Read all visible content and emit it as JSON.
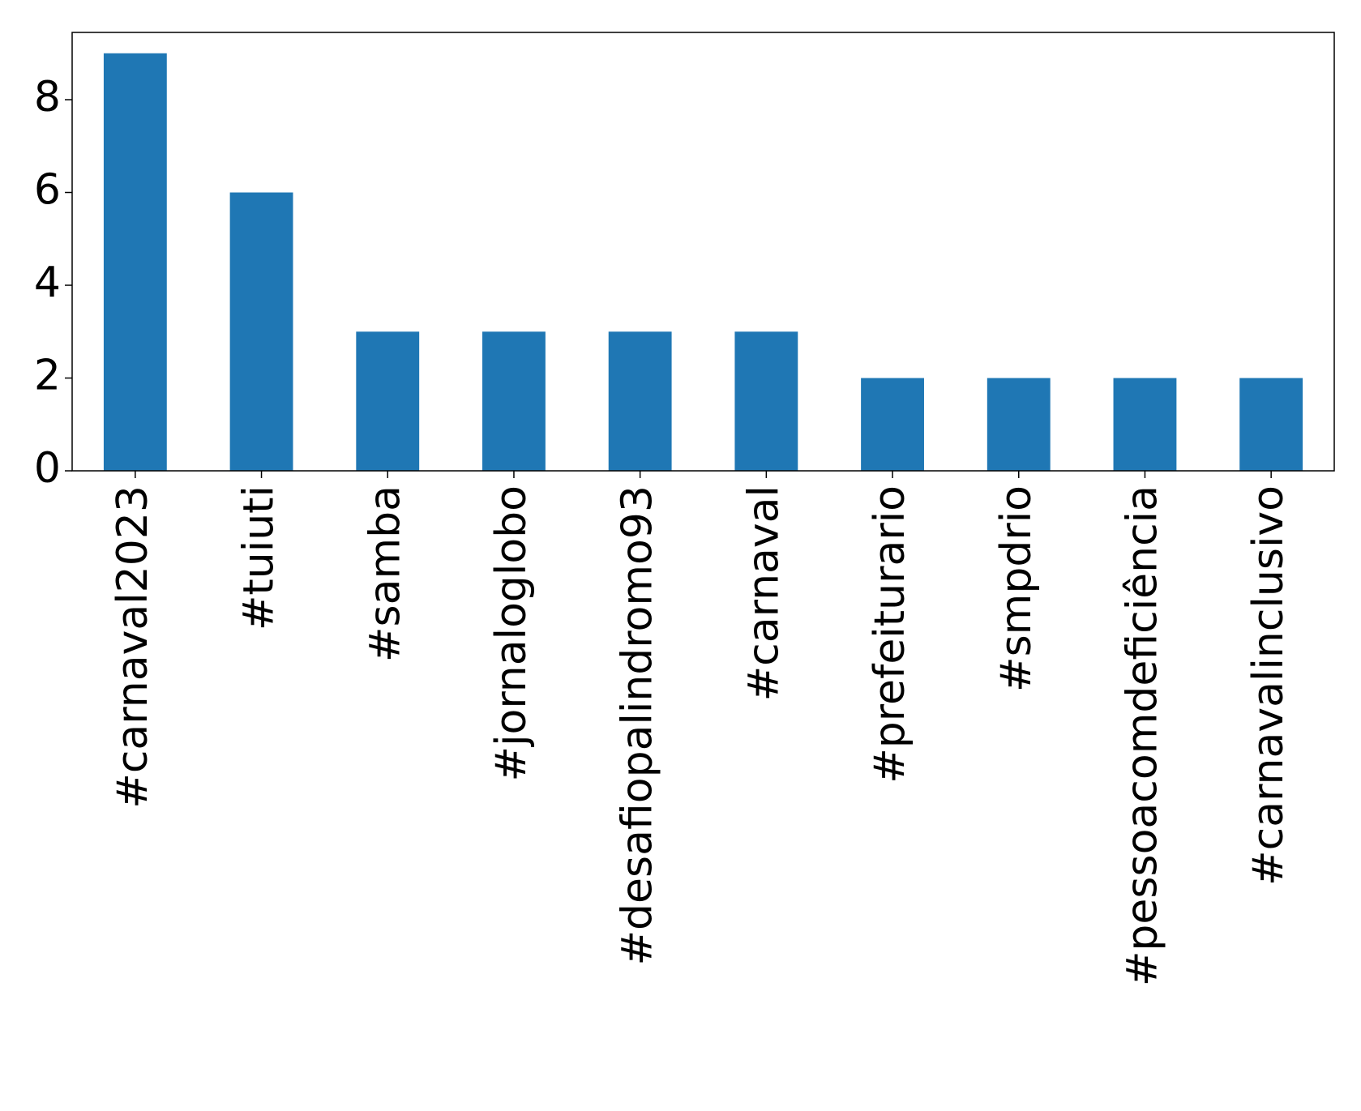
{
  "chart_data": {
    "type": "bar",
    "categories": [
      "#carnaval2023",
      "#tuiuti",
      "#samba",
      "#jornaloglobo",
      "#desafiopalindromo93",
      "#carnaval",
      "#prefeiturario",
      "#smpdrio",
      "#pessoacomdeficiência",
      "#carnavalinclusivo"
    ],
    "values": [
      9,
      6,
      3,
      3,
      3,
      3,
      2,
      2,
      2,
      2
    ],
    "color": "#1f77b4",
    "ylim": [
      0,
      9.45
    ],
    "yticks": [
      0,
      2,
      4,
      6,
      8
    ],
    "grid": false
  }
}
